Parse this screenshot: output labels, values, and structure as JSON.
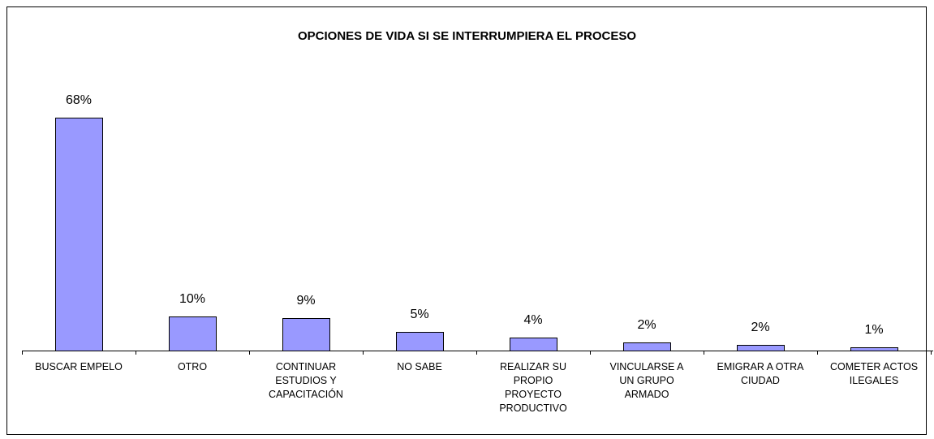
{
  "chart_data": {
    "type": "bar",
    "title": "OPCIONES DE VIDA SI SE INTERRUMPIERA EL PROCESO",
    "categories": [
      "BUSCAR EMPELO",
      "OTRO",
      "CONTINUAR ESTUDIOS Y CAPACITACIÓN",
      "NO SABE",
      "REALIZAR SU PROPIO PROYECTO PRODUCTIVO",
      "VINCULARSE A UN GRUPO ARMADO",
      "EMIGRAR A OTRA CIUDAD",
      "COMETER ACTOS ILEGALES"
    ],
    "values": [
      68,
      10,
      9.4,
      5.4,
      3.8,
      2.4,
      1.6,
      0.9
    ],
    "value_labels": [
      "68%",
      "10%",
      "9%",
      "5%",
      "4%",
      "2%",
      "2%",
      "1%"
    ],
    "color": "#9999ff"
  }
}
